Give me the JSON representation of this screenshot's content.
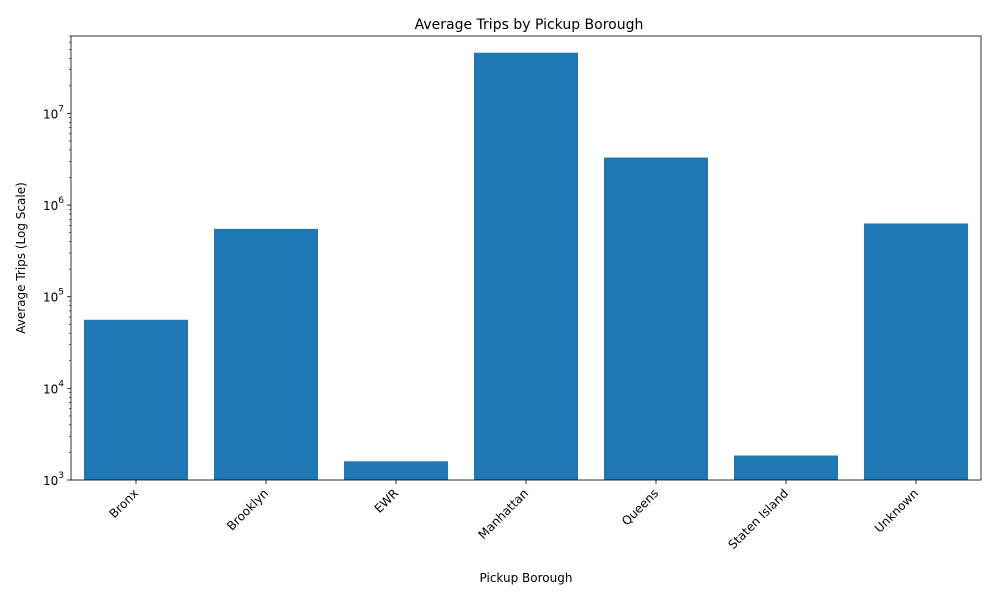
{
  "chart_data": {
    "type": "bar",
    "title": "Average Trips by Pickup Borough",
    "xlabel": "Pickup Borough",
    "ylabel": "Average Trips (Log Scale)",
    "yscale": "log",
    "ylim": [
      1000,
      70000000
    ],
    "grid": false,
    "bar_color": "#1f77b4",
    "categories": [
      "Bronx",
      "Brooklyn",
      "EWR",
      "Manhattan",
      "Queens",
      "Staten Island",
      "Unknown"
    ],
    "values": [
      56000,
      550000,
      1600,
      46000000,
      3300000,
      1850,
      630000
    ],
    "y_ticks": [
      {
        "value": 1000,
        "base": "10",
        "exp": "3"
      },
      {
        "value": 10000,
        "base": "10",
        "exp": "4"
      },
      {
        "value": 100000,
        "base": "10",
        "exp": "5"
      },
      {
        "value": 1000000,
        "base": "10",
        "exp": "6"
      },
      {
        "value": 10000000,
        "base": "10",
        "exp": "7"
      }
    ]
  }
}
